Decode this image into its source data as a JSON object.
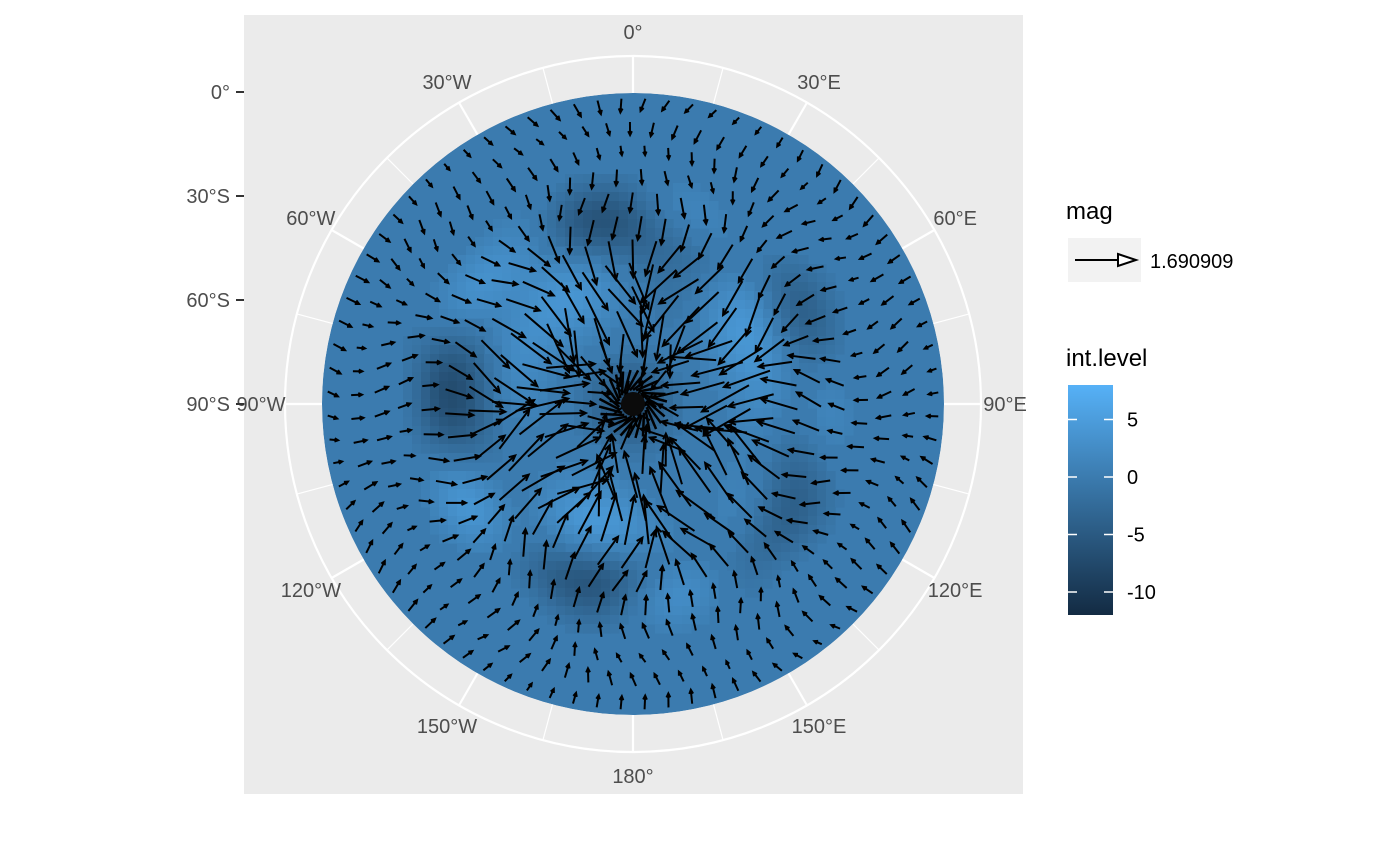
{
  "chart_data": {
    "type": "heatmap",
    "projection": "polar (south pole centered)",
    "title": "",
    "x_axis": {
      "type": "longitude",
      "ticks": [
        {
          "lon": 0,
          "label": "0°"
        },
        {
          "lon": 30,
          "label": "30°E"
        },
        {
          "lon": 60,
          "label": "60°E"
        },
        {
          "lon": 90,
          "label": "90°E"
        },
        {
          "lon": 120,
          "label": "120°E"
        },
        {
          "lon": 150,
          "label": "150°E"
        },
        {
          "lon": 180,
          "label": "180°"
        },
        {
          "lon": -150,
          "label": "150°W"
        },
        {
          "lon": -120,
          "label": "120°W"
        },
        {
          "lon": -90,
          "label": "90°W"
        },
        {
          "lon": -60,
          "label": "60°W"
        },
        {
          "lon": -30,
          "label": "30°W"
        }
      ]
    },
    "y_axis": {
      "type": "latitude",
      "ticks": [
        {
          "lat": 0,
          "label": "0°"
        },
        {
          "lat": -30,
          "label": "30°S"
        },
        {
          "lat": -60,
          "label": "60°S"
        },
        {
          "lat": -90,
          "label": "90°S"
        }
      ]
    },
    "fill": {
      "name": "int.level",
      "range": [
        -12,
        8
      ],
      "breaks": [
        {
          "value": 5,
          "label": "5"
        },
        {
          "value": 0,
          "label": "0"
        },
        {
          "value": -5,
          "label": "-5"
        },
        {
          "value": -10,
          "label": "-10"
        }
      ],
      "low_color": "#132b43",
      "high_color": "#56b1f7"
    },
    "vectors": {
      "name": "mag",
      "legend_value": "1.690909",
      "color": "#000000"
    },
    "grid": true,
    "panel_background": "#ebebeb",
    "grid_color": "#ffffff",
    "legend_position": "right"
  }
}
